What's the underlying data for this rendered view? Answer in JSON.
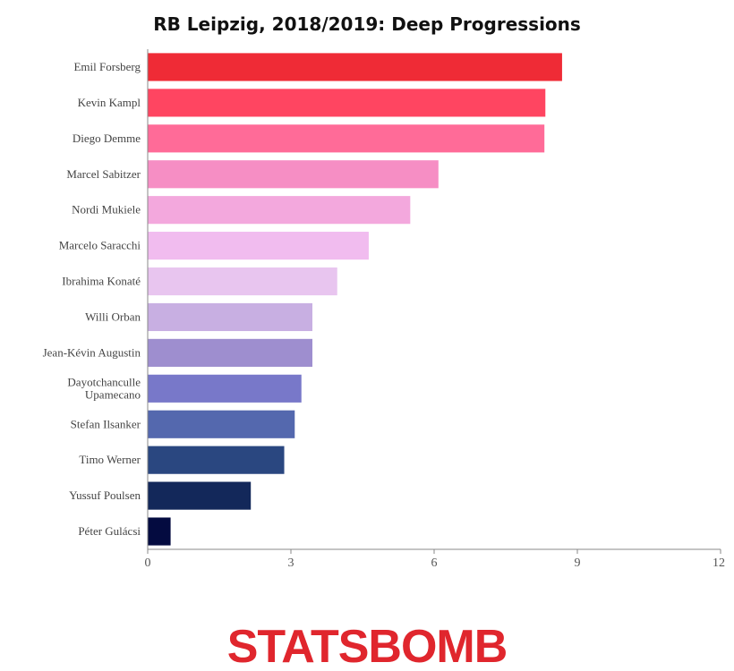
{
  "chart_data": {
    "type": "bar",
    "orientation": "horizontal",
    "title": "RB Leipzig, 2018/2019: Deep Progressions",
    "xlabel": "",
    "ylabel": "",
    "xlim": [
      0,
      12
    ],
    "xticks": [
      "0",
      "3",
      "6",
      "9",
      "12"
    ],
    "grid": false,
    "legend": "none",
    "categories": [
      "Emil Forsberg",
      "Kevin Kampl",
      "Diego Demme",
      "Marcel Sabitzer",
      "Nordi Mukiele",
      "Marcelo Saracchi",
      "Ibrahima Konaté",
      "Willi Orban",
      "Jean-Kévin Augustin",
      "Dayotchanculle Upamecano",
      "Stefan Ilsanker",
      "Timo Werner",
      "Yussuf Poulsen",
      "Péter Gulácsi"
    ],
    "values": [
      8.68,
      8.33,
      8.31,
      6.09,
      5.5,
      4.63,
      3.97,
      3.45,
      3.45,
      3.22,
      3.08,
      2.86,
      2.16,
      0.48
    ],
    "colors": [
      "#ef2b36",
      "#ff4561",
      "#ff6b98",
      "#f68ec4",
      "#f3a8dd",
      "#f1bcef",
      "#e8c5ef",
      "#c8afe2",
      "#9e8ecf",
      "#7878c9",
      "#5468ae",
      "#2a4780",
      "#13285a",
      "#040b40"
    ]
  },
  "branding": {
    "logo_text": "STATSBOMB",
    "logo_color": "#e0262d"
  }
}
